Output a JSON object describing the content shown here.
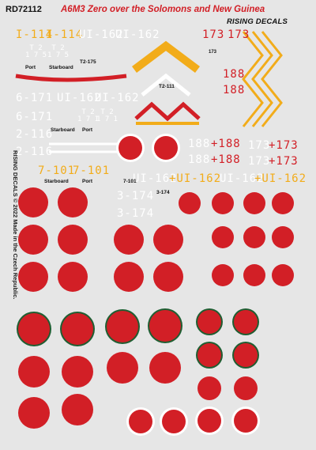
{
  "sheet": {
    "code": "RD72112",
    "title": "A6M3 Zero over the Solomons and New Guinea",
    "brand": "RISING DECALS",
    "side_text": "RISING DECALS © 2022 Made in the Czech Republic."
  },
  "markings": {
    "i114": "I-114",
    "ui162_top": "UI-162",
    "top_173": "173",
    "t2_left": "T 2\n1 7 5",
    "t2_right": "T 2\n1 7 5",
    "t2_175": "T2-175",
    "tiny_173": "173",
    "t2_111": "T2-111",
    "r188": "188",
    "s6171": "6-171",
    "ui162_mid": "UI-162",
    "t2_small_1": "T 2\n1 7 1",
    "t2_small_2": "T 2\n1 7 1",
    "s2116": "2-116",
    "w188": "188",
    "r188b": "+188",
    "w173": "173",
    "r173": "+173",
    "s7101": "7-101",
    "ui162_bot_w": "UI-162",
    "ui162_bot_y": "+UI-162",
    "ui162_bot_w2": "UI-162",
    "ui162_bot_y2": "+UI-162",
    "s3174": "3-174",
    "l3174": "3-174",
    "l7101": "7-101"
  },
  "labels": {
    "port": "Port",
    "starboard": "Starboard"
  },
  "colors": {
    "hinomaru_red": "#d21f26",
    "yellow": "#f2ac1a",
    "border_green": "#1f5e32",
    "white": "#ffffff",
    "background": "#e6e6e6"
  }
}
